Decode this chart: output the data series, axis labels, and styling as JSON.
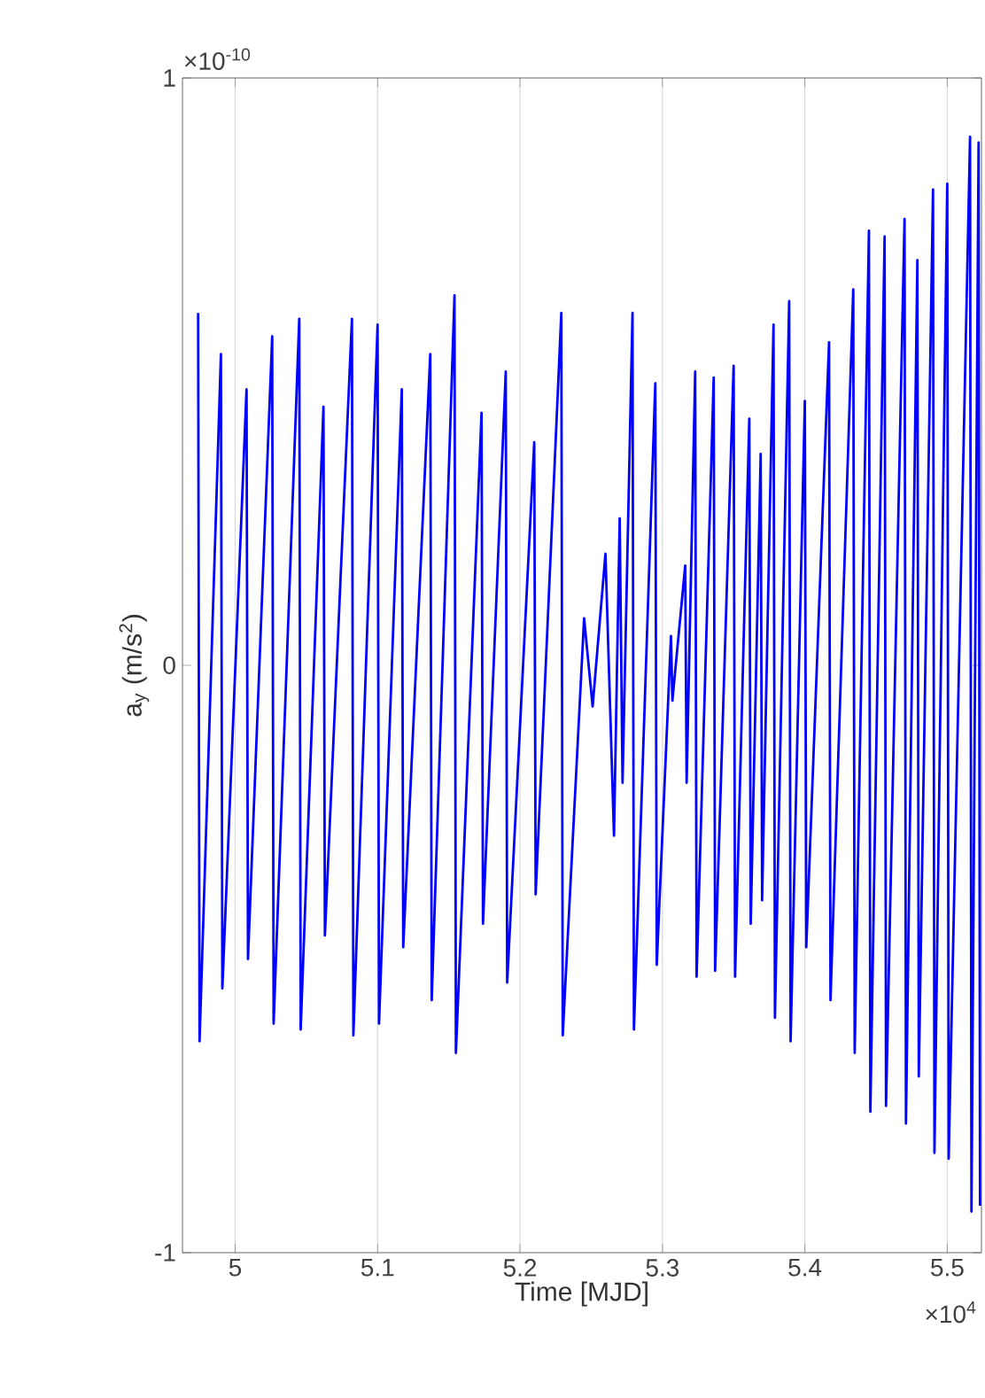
{
  "chart_data": {
    "type": "line",
    "xlabel": "Time [MJD]",
    "ylabel": "a$_{y}$ (m/s$^{2}$)",
    "annotations": [
      "×10$^{-10}$",
      "×10$^{4}$"
    ],
    "xlim": [
      4.963,
      5.524
    ],
    "ylim": [
      -1,
      1
    ],
    "xticks": [
      5,
      5.1,
      5.2,
      5.3,
      5.4,
      5.5
    ],
    "yticks": [
      -1,
      0,
      1
    ],
    "grid": "x",
    "series": [
      {
        "color": "#0000ff",
        "x": [
          4.974,
          4.975,
          4.99,
          4.991,
          5.008,
          5.009,
          5.026,
          5.027,
          5.045,
          5.046,
          5.062,
          5.063,
          5.082,
          5.083,
          5.1,
          5.101,
          5.117,
          5.118,
          5.137,
          5.138,
          5.154,
          5.155,
          5.173,
          5.174,
          5.19,
          5.191,
          5.21,
          5.211,
          5.229,
          5.23,
          5.245,
          5.251,
          5.26,
          5.266,
          5.27,
          5.272,
          5.279,
          5.28,
          5.295,
          5.296,
          5.306,
          5.307,
          5.316,
          5.317,
          5.323,
          5.324,
          5.336,
          5.337,
          5.35,
          5.351,
          5.361,
          5.362,
          5.369,
          5.37,
          5.378,
          5.379,
          5.389,
          5.39,
          5.4,
          5.401,
          5.417,
          5.418,
          5.434,
          5.435,
          5.445,
          5.446,
          5.456,
          5.457,
          5.47,
          5.471,
          5.479,
          5.48,
          5.49,
          5.491,
          5.5,
          5.501,
          5.516,
          5.517,
          5.522,
          5.523
        ],
        "values": [
          0.6,
          -0.64,
          0.53,
          -0.55,
          0.47,
          -0.5,
          0.56,
          -0.61,
          0.59,
          -0.62,
          0.44,
          -0.46,
          0.59,
          -0.63,
          0.58,
          -0.61,
          0.47,
          -0.48,
          0.53,
          -0.57,
          0.63,
          -0.66,
          0.43,
          -0.44,
          0.5,
          -0.54,
          0.38,
          -0.39,
          0.6,
          -0.63,
          0.08,
          -0.07,
          0.19,
          -0.29,
          0.25,
          -0.2,
          0.6,
          -0.62,
          0.48,
          -0.51,
          0.05,
          -0.06,
          0.17,
          -0.2,
          0.5,
          -0.53,
          0.49,
          -0.52,
          0.51,
          -0.53,
          0.42,
          -0.44,
          0.36,
          -0.4,
          0.58,
          -0.6,
          0.62,
          -0.64,
          0.45,
          -0.48,
          0.55,
          -0.57,
          0.64,
          -0.66,
          0.74,
          -0.76,
          0.73,
          -0.75,
          0.76,
          -0.78,
          0.69,
          -0.7,
          0.81,
          -0.83,
          0.82,
          -0.84,
          0.9,
          -0.93,
          0.89,
          -0.92
        ]
      }
    ]
  }
}
